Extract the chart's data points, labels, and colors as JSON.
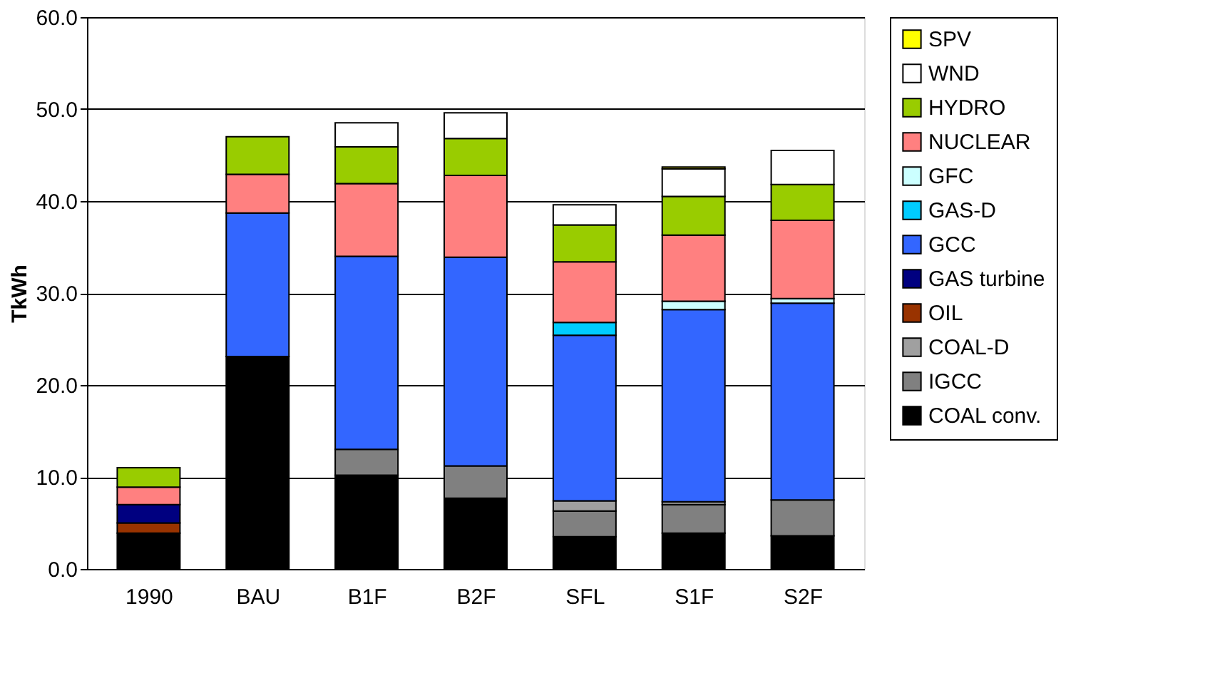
{
  "chart_data": {
    "type": "bar",
    "stacked": true,
    "ylabel": "TkWh",
    "categories": [
      "1990",
      "BAU",
      "B1F",
      "B2F",
      "SFL",
      "S1F",
      "S2F"
    ],
    "series": [
      {
        "name": "COAL conv.",
        "color": "#000000",
        "values": [
          3.9,
          23.1,
          10.2,
          7.7,
          3.5,
          3.9,
          3.6
        ]
      },
      {
        "name": "IGCC",
        "color": "#808080",
        "values": [
          null,
          null,
          2.8,
          3.5,
          2.8,
          3.1,
          3.9
        ]
      },
      {
        "name": "COAL-D",
        "color": "#a0a0a0",
        "values": [
          null,
          null,
          null,
          null,
          1.1,
          0.3,
          null
        ]
      },
      {
        "name": "OIL",
        "color": "#993300",
        "values": [
          1.1,
          null,
          null,
          null,
          null,
          null,
          null
        ]
      },
      {
        "name": "GAS turbine",
        "color": "#000080",
        "values": [
          2.0,
          null,
          null,
          null,
          null,
          null,
          null
        ]
      },
      {
        "name": "GCC",
        "color": "#3366ff",
        "values": [
          null,
          15.6,
          21.0,
          22.7,
          18.0,
          20.9,
          21.4
        ]
      },
      {
        "name": "GAS-D",
        "color": "#00ccff",
        "values": [
          null,
          null,
          null,
          null,
          1.4,
          null,
          null
        ]
      },
      {
        "name": "GFC",
        "color": "#ccffff",
        "values": [
          null,
          null,
          null,
          null,
          null,
          0.9,
          0.5
        ]
      },
      {
        "name": "NUCLEAR",
        "color": "#ff8080",
        "values": [
          1.9,
          4.2,
          7.9,
          8.9,
          6.6,
          7.2,
          8.5
        ]
      },
      {
        "name": "HYDRO",
        "color": "#99cc00",
        "values": [
          2.1,
          4.1,
          4.0,
          4.0,
          4.0,
          4.2,
          3.9
        ]
      },
      {
        "name": "WND",
        "color": "#ffffff",
        "values": [
          null,
          null,
          2.6,
          2.8,
          2.2,
          3.0,
          3.7
        ]
      },
      {
        "name": "SPV",
        "color": "#ffff00",
        "values": [
          null,
          null,
          null,
          null,
          null,
          0.2,
          null
        ]
      }
    ],
    "ylim": [
      0,
      60
    ],
    "yticks": [
      {
        "value": 0,
        "label": "0.0"
      },
      {
        "value": 10,
        "label": "10.0"
      },
      {
        "value": 20,
        "label": "20.0"
      },
      {
        "value": 30,
        "label": "30.0"
      },
      {
        "value": 40,
        "label": "40.0"
      },
      {
        "value": 50,
        "label": "50.0"
      },
      {
        "value": 60,
        "label": "60.0"
      }
    ],
    "grid": "y",
    "legend": "right"
  }
}
